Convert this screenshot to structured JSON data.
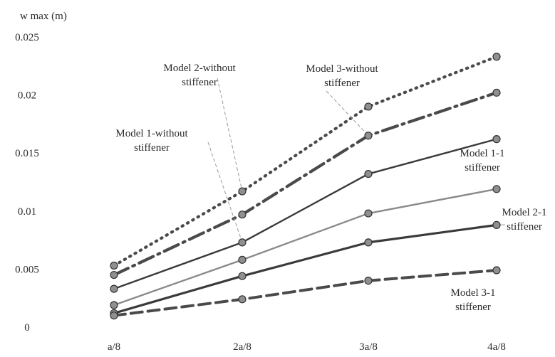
{
  "chart_data": {
    "type": "line",
    "ylabel": "w max (m)",
    "xlabel": "",
    "categories": [
      "a/8",
      "2a/8",
      "3a/8",
      "4a/8"
    ],
    "ylim": [
      0,
      0.025
    ],
    "yticks": [
      "0",
      "0.005",
      "0.01",
      "0.015",
      "0.02",
      "0.025"
    ],
    "grid": false,
    "series": [
      {
        "name": "Model 2-without stiffener",
        "values": [
          0.0053,
          0.0117,
          0.019,
          0.0233
        ],
        "color": "#4a4a4a",
        "dash": "dotted"
      },
      {
        "name": "Model 3-without stiffener",
        "values": [
          0.0045,
          0.0097,
          0.0165,
          0.0202
        ],
        "color": "#4a4a4a",
        "dash": "dashdot"
      },
      {
        "name": "Model 1-without stiffener",
        "values": [
          0.0033,
          0.0073,
          0.0132,
          0.0162
        ],
        "color": "#3a3a3a",
        "dash": "solid"
      },
      {
        "name": "Model 1-1 stiffener",
        "values": [
          0.0019,
          0.0058,
          0.0098,
          0.0119
        ],
        "color": "#8a8a8a",
        "dash": "solid"
      },
      {
        "name": "Model 2-1 stiffener",
        "values": [
          0.0012,
          0.0044,
          0.0073,
          0.0088
        ],
        "color": "#3a3a3a",
        "dash": "solid"
      },
      {
        "name": "Model 3-1 stiffener",
        "values": [
          0.001,
          0.0024,
          0.004,
          0.0049
        ],
        "color": "#4a4a4a",
        "dash": "dashed"
      }
    ],
    "annotations": [
      {
        "lines": [
          "Model 2-without",
          "stiffener"
        ],
        "series": 0,
        "point": 1
      },
      {
        "lines": [
          "Model 3-without",
          "stiffener"
        ],
        "series": 1,
        "point": 2
      },
      {
        "lines": [
          "Model 1-without",
          "stiffener"
        ],
        "series": 2,
        "point": 1
      },
      {
        "lines": [
          "Model 1-1",
          "stiffener"
        ],
        "series": 3,
        "point": 3
      },
      {
        "lines": [
          "Model 2-1",
          "stiffener"
        ],
        "series": 4,
        "point": 3
      },
      {
        "lines": [
          "Model 3-1",
          "stiffener"
        ],
        "series": 5,
        "point": 3
      }
    ]
  }
}
